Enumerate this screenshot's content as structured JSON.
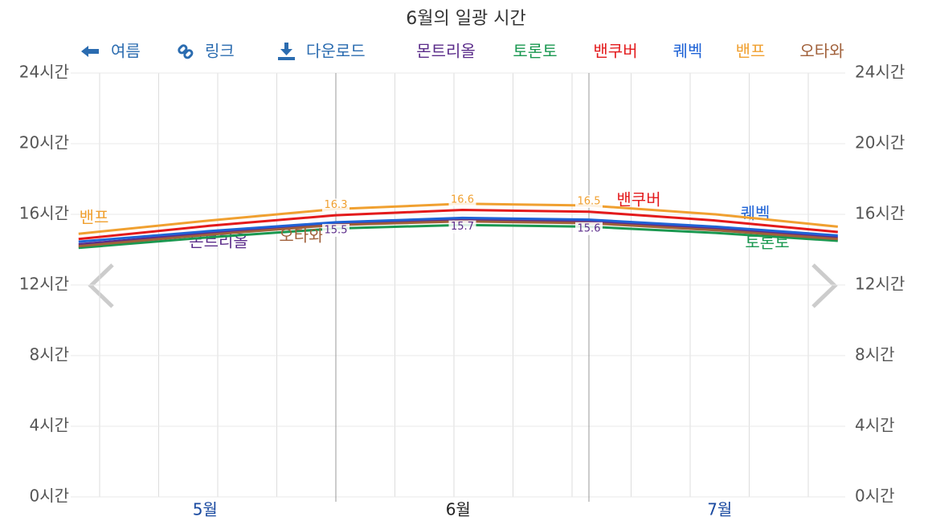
{
  "chart_data": {
    "type": "line",
    "title": "6월의 일광 시간",
    "toolbar": [
      "여름",
      "링크",
      "다운로드"
    ],
    "x": [
      0.5,
      16,
      31,
      46,
      61,
      76,
      90.5
    ],
    "xlim": [
      0,
      92
    ],
    "xticks": [
      {
        "value": 15.5,
        "label": "5월"
      },
      {
        "value": 45.5,
        "label": "6월"
      },
      {
        "value": 76.5,
        "label": "7월"
      }
    ],
    "month_boundaries": [
      31,
      61
    ],
    "minor_grid": [
      3,
      10,
      17,
      24,
      38,
      45,
      52,
      59,
      66,
      73,
      80,
      87
    ],
    "ylim": [
      0,
      24
    ],
    "yticks": [
      {
        "value": 0,
        "label": "0시간"
      },
      {
        "value": 4,
        "label": "4시간"
      },
      {
        "value": 8,
        "label": "8시간"
      },
      {
        "value": 12,
        "label": "12시간"
      },
      {
        "value": 16,
        "label": "16시간"
      },
      {
        "value": 20,
        "label": "20시간"
      },
      {
        "value": 24,
        "label": "24시간"
      }
    ],
    "grid": true,
    "labeled_points": [
      2,
      3,
      4
    ],
    "series": [
      {
        "name": "몬트리올",
        "color": "#5b2c8a",
        "values": [
          14.3,
          14.95,
          15.5,
          15.7,
          15.6,
          15.2,
          14.7
        ],
        "show_values": true
      },
      {
        "name": "토론토",
        "color": "#1a9850",
        "values": [
          14.1,
          14.7,
          15.2,
          15.4,
          15.3,
          14.95,
          14.5
        ]
      },
      {
        "name": "밴쿠버",
        "color": "#e31a1c",
        "values": [
          14.6,
          15.35,
          15.95,
          16.25,
          16.15,
          15.65,
          15.0
        ]
      },
      {
        "name": "퀘벡",
        "color": "#1f63d6",
        "values": [
          14.45,
          15.05,
          15.55,
          15.8,
          15.7,
          15.3,
          14.8
        ]
      },
      {
        "name": "밴프",
        "color": "#f0a030",
        "values": [
          14.9,
          15.65,
          16.3,
          16.6,
          16.5,
          16.0,
          15.3
        ],
        "show_values": true
      },
      {
        "name": "오타와",
        "color": "#a0603a",
        "values": [
          14.2,
          14.85,
          15.4,
          15.6,
          15.5,
          15.1,
          14.6
        ]
      }
    ]
  }
}
